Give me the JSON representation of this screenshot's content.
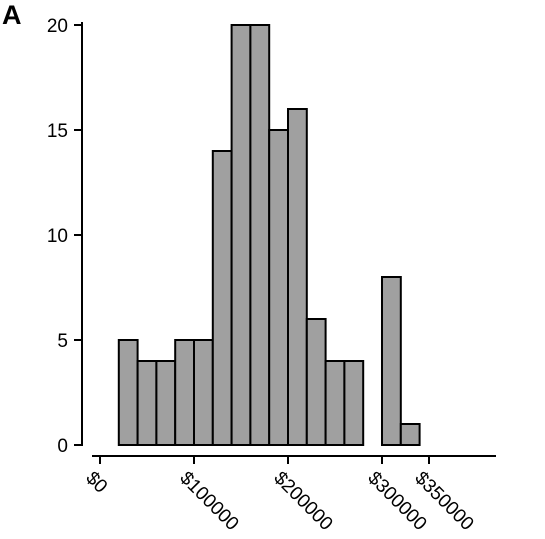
{
  "chart_data": {
    "type": "bar",
    "panel_label": "A",
    "title": "",
    "xlabel": "",
    "ylabel": "",
    "bin_width": 20000,
    "xlim": [
      0,
      400000
    ],
    "ylim": [
      0,
      20
    ],
    "y_ticks": [
      0,
      5,
      10,
      15,
      20
    ],
    "x_ticks": [
      {
        "value": 0,
        "label": "$0"
      },
      {
        "value": 100000,
        "label": "$100000"
      },
      {
        "value": 200000,
        "label": "$200000"
      },
      {
        "value": 300000,
        "label": "$300000"
      },
      {
        "value": 350000,
        "label": "$350000"
      }
    ],
    "bins": [
      {
        "start": 20000,
        "end": 40000,
        "count": 5
      },
      {
        "start": 40000,
        "end": 60000,
        "count": 4
      },
      {
        "start": 60000,
        "end": 80000,
        "count": 4
      },
      {
        "start": 80000,
        "end": 100000,
        "count": 5
      },
      {
        "start": 100000,
        "end": 120000,
        "count": 5
      },
      {
        "start": 120000,
        "end": 140000,
        "count": 14
      },
      {
        "start": 140000,
        "end": 160000,
        "count": 20
      },
      {
        "start": 160000,
        "end": 180000,
        "count": 20
      },
      {
        "start": 180000,
        "end": 200000,
        "count": 15
      },
      {
        "start": 200000,
        "end": 220000,
        "count": 16
      },
      {
        "start": 220000,
        "end": 240000,
        "count": 6
      },
      {
        "start": 240000,
        "end": 260000,
        "count": 4
      },
      {
        "start": 260000,
        "end": 280000,
        "count": 4
      },
      {
        "start": 280000,
        "end": 300000,
        "count": 0
      },
      {
        "start": 300000,
        "end": 320000,
        "count": 8
      },
      {
        "start": 320000,
        "end": 340000,
        "count": 1
      }
    ],
    "bar_color": "#a0a0a0",
    "edge_color": "#000000",
    "grid": false,
    "legend": "none"
  }
}
